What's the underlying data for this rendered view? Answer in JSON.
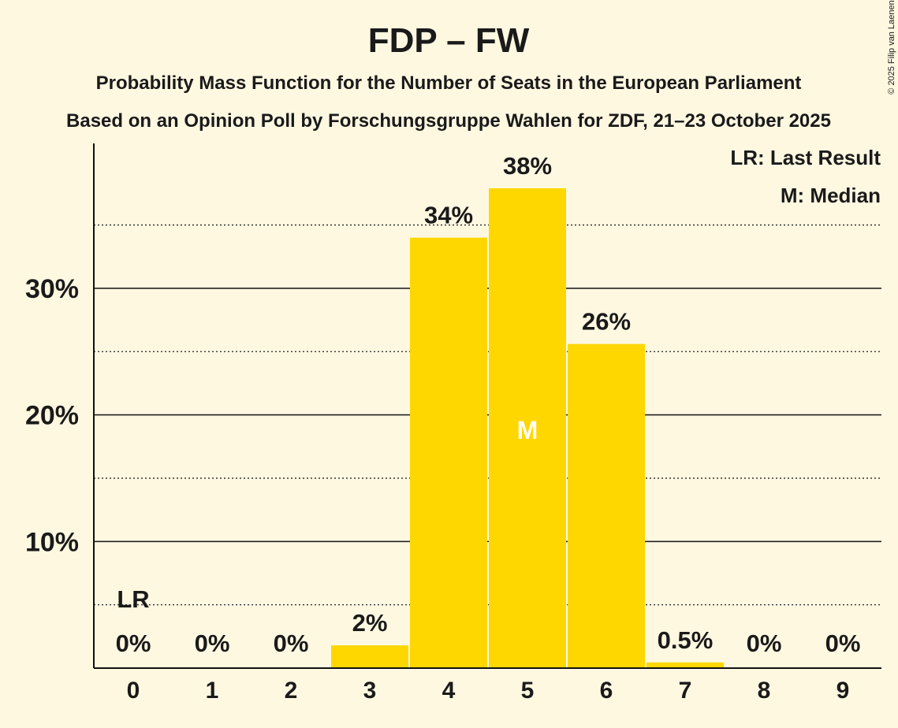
{
  "chart_data": {
    "type": "bar",
    "title": "FDP – FW",
    "subtitle": "Probability Mass Function for the Number of Seats in the European Parliament",
    "subtitle2": "Based on an Opinion Poll by Forschungsgruppe Wahlen for ZDF, 21–23 October 2025",
    "copyright": "© 2025 Filip van Laenen",
    "categories": [
      "0",
      "1",
      "2",
      "3",
      "4",
      "5",
      "6",
      "7",
      "8",
      "9"
    ],
    "values": [
      0,
      0,
      0,
      1.8,
      34.0,
      37.9,
      25.6,
      0.45,
      0,
      0
    ],
    "data_labels": [
      "0%",
      "0%",
      "0%",
      "2%",
      "34%",
      "38%",
      "26%",
      "0.5%",
      "0%",
      "0%"
    ],
    "yticks": [
      10,
      20,
      30
    ],
    "ytick_labels": [
      "10%",
      "20%",
      "30%"
    ],
    "minor_gridlines": [
      5,
      15,
      25,
      35
    ],
    "ylim": [
      0,
      41.3
    ],
    "last_result_index": 0,
    "last_result_label": "LR",
    "median_index": 5,
    "median_label": "M",
    "legend": [
      "LR: Last Result",
      "M: Median"
    ],
    "legend_position": "top-right",
    "bar_color": "#FFD700",
    "background": "#FFF8E1"
  }
}
